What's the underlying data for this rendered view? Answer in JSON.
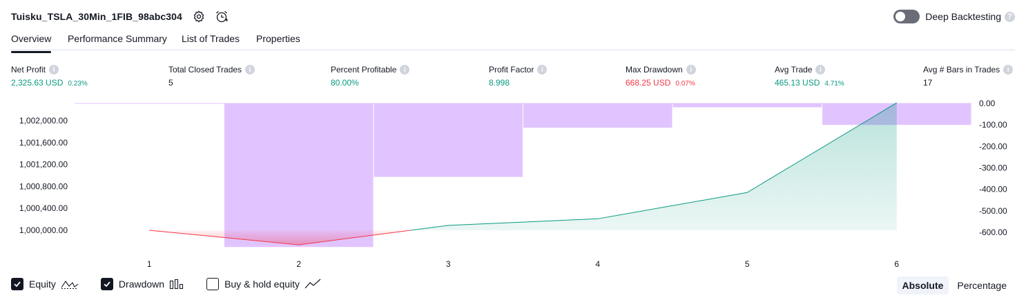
{
  "header": {
    "title": "Tuisku_TSLA_30Min_1FIB_98abc304",
    "settings_icon": "gear-icon",
    "alert_icon": "alarm-clock-add-icon",
    "deep_backtesting_label": "Deep Backtesting",
    "deep_backtesting_enabled": false
  },
  "tabs": [
    {
      "label": "Overview",
      "active": true
    },
    {
      "label": "Performance Summary",
      "active": false
    },
    {
      "label": "List of Trades",
      "active": false
    },
    {
      "label": "Properties",
      "active": false
    }
  ],
  "metrics": [
    {
      "label": "Net Profit",
      "value": "2,325.63 USD",
      "pct": "0.23%",
      "color": "green"
    },
    {
      "label": "Total Closed Trades",
      "value": "5",
      "pct": "",
      "color": "dark"
    },
    {
      "label": "Percent Profitable",
      "value": "80.00%",
      "pct": "",
      "color": "green"
    },
    {
      "label": "Profit Factor",
      "value": "8.998",
      "pct": "",
      "color": "green"
    },
    {
      "label": "Max Drawdown",
      "value": "668.25 USD",
      "pct": "0.07%",
      "color": "red"
    },
    {
      "label": "Avg Trade",
      "value": "465.13 USD",
      "pct": "4.71%",
      "color": "green"
    },
    {
      "label": "Avg # Bars in Trades",
      "value": "17",
      "pct": "",
      "color": "dark"
    }
  ],
  "chart_data": {
    "type": "line",
    "x": [
      1,
      2,
      3,
      4,
      5,
      6
    ],
    "equity_series": {
      "values": [
        1000000,
        999735,
        1000090,
        1000210,
        1000690,
        1002325.63
      ],
      "color_gain": "#089981",
      "color_loss": "#f23645"
    },
    "drawdown_series": {
      "type": "bar",
      "values": [
        0,
        -668.25,
        -342,
        -113,
        -18,
        -100
      ],
      "color": "#e1c4ff"
    },
    "left_axis": {
      "ticks": [
        "1,002,000.00",
        "1,001,600.00",
        "1,001,200.00",
        "1,000,800.00",
        "1,000,400.00",
        "1,000,000.00"
      ]
    },
    "right_axis": {
      "ticks": [
        "0.00",
        "-100.00",
        "-200.00",
        "-300.00",
        "-400.00",
        "-500.00",
        "-600.00"
      ]
    },
    "x_ticks": [
      "1",
      "2",
      "3",
      "4",
      "5",
      "6"
    ]
  },
  "legend": {
    "items": [
      {
        "label": "Equity",
        "checked": true,
        "icon": "line-chart-icon"
      },
      {
        "label": "Drawdown",
        "checked": true,
        "icon": "bar-chart-icon"
      },
      {
        "label": "Buy & hold equity",
        "checked": false,
        "icon": "trend-line-icon"
      }
    ]
  },
  "view_mode": {
    "options": [
      "Absolute",
      "Percentage"
    ],
    "selected": "Absolute"
  }
}
